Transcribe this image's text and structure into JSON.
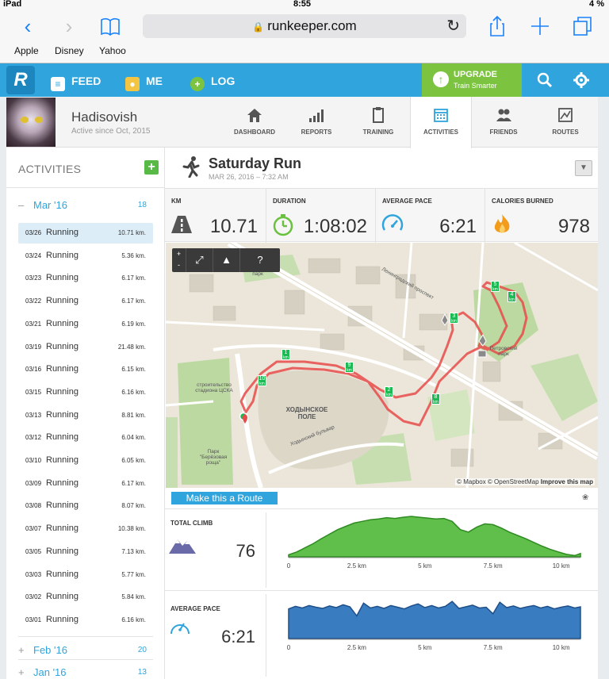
{
  "status_bar": {
    "device": "iPad",
    "time": "8:55",
    "battery": "4 %"
  },
  "browser": {
    "url": "runkeeper.com",
    "bookmarks": [
      "Apple",
      "Disney",
      "Yahoo"
    ]
  },
  "header": {
    "nav": [
      {
        "label": "FEED",
        "icon": "feed-icon"
      },
      {
        "label": "ME",
        "icon": "me-icon"
      },
      {
        "label": "LOG",
        "icon": "log-plus-icon"
      }
    ],
    "upgrade": {
      "title": "UPGRADE",
      "subtitle": "Train Smarter"
    }
  },
  "profile": {
    "name": "Hadisovish",
    "since": "Active since Oct, 2015"
  },
  "tabs": [
    {
      "label": "DASHBOARD",
      "icon": "home-icon",
      "active": false
    },
    {
      "label": "REPORTS",
      "icon": "bar-signal-icon",
      "active": false
    },
    {
      "label": "TRAINING",
      "icon": "clipboard-icon",
      "active": false
    },
    {
      "label": "ACTIVITIES",
      "icon": "calendar-icon",
      "active": true
    },
    {
      "label": "FRIENDS",
      "icon": "friends-icon",
      "active": false
    },
    {
      "label": "ROUTES",
      "icon": "routes-map-icon",
      "active": false
    }
  ],
  "sidebar": {
    "title": "ACTIVITIES",
    "months": [
      {
        "prefix": "–",
        "label": "Mar '16",
        "count": "18"
      },
      {
        "prefix": "+",
        "label": "Feb '16",
        "count": "20"
      },
      {
        "prefix": "+",
        "label": "Jan '16",
        "count": "13"
      }
    ],
    "activities": [
      {
        "date": "03/26",
        "type": "Running",
        "km": "10.71 km."
      },
      {
        "date": "03/24",
        "type": "Running",
        "km": "5.36 km."
      },
      {
        "date": "03/23",
        "type": "Running",
        "km": "6.17 km."
      },
      {
        "date": "03/22",
        "type": "Running",
        "km": "6.17 km."
      },
      {
        "date": "03/21",
        "type": "Running",
        "km": "6.19 km."
      },
      {
        "date": "03/19",
        "type": "Running",
        "km": "21.48 km."
      },
      {
        "date": "03/16",
        "type": "Running",
        "km": "6.15 km."
      },
      {
        "date": "03/15",
        "type": "Running",
        "km": "6.16 km."
      },
      {
        "date": "03/13",
        "type": "Running",
        "km": "8.81 km."
      },
      {
        "date": "03/12",
        "type": "Running",
        "km": "6.04 km."
      },
      {
        "date": "03/10",
        "type": "Running",
        "km": "6.05 km."
      },
      {
        "date": "03/09",
        "type": "Running",
        "km": "6.17 km."
      },
      {
        "date": "03/08",
        "type": "Running",
        "km": "8.07 km."
      },
      {
        "date": "03/07",
        "type": "Running",
        "km": "10.38 km."
      },
      {
        "date": "03/05",
        "type": "Running",
        "km": "7.13 km."
      },
      {
        "date": "03/03",
        "type": "Running",
        "km": "5.77 km."
      },
      {
        "date": "03/02",
        "type": "Running",
        "km": "5.84 km."
      },
      {
        "date": "03/01",
        "type": "Running",
        "km": "6.16 km."
      }
    ],
    "selected_index": 0
  },
  "activity": {
    "title": "Saturday Run",
    "date": "MAR 26, 2016 – 7:32 AM",
    "stats": [
      {
        "label": "KM",
        "value": "10.71",
        "icon": "road-icon"
      },
      {
        "label": "DURATION",
        "value": "1:08:02",
        "icon": "stopwatch-icon"
      },
      {
        "label": "AVERAGE PACE",
        "value": "6:21",
        "icon": "speedometer-icon"
      },
      {
        "label": "CALORIES BURNED",
        "value": "978",
        "icon": "flame-icon"
      }
    ]
  },
  "map": {
    "controls": [
      "+",
      "-",
      "fullscreen-icon",
      "terrain-icon",
      "?"
    ],
    "labels": {
      "field": "ХОДЫНСКОЕ ПОЛЕ",
      "park": "Парк \"Берёзовая роща\"",
      "stadium": "строительство стадиона ЦСКА",
      "petrovsky": "Петровский парк",
      "avenue": "Ленинградский проспект",
      "boulevard": "Ходынский бульвар",
      "park_top": "парк"
    },
    "km_markers": [
      "1",
      "2",
      "3",
      "4",
      "5",
      "8",
      "9",
      "10"
    ],
    "attribution": {
      "mapbox": "© Mapbox",
      "osm": "© OpenStreetMap",
      "improve": "Improve this map"
    }
  },
  "route_button": "Make this a Route",
  "total_climb": {
    "label": "TOTAL CLIMB",
    "value": "76"
  },
  "average_pace": {
    "label": "AVERAGE PACE",
    "value": "6:21"
  },
  "chart_data": [
    {
      "type": "area",
      "name": "elevation",
      "x_ticks": [
        "0",
        "2.5 km",
        "5 km",
        "7.5 km",
        "10 km"
      ],
      "xlim": [
        0,
        10.71
      ],
      "x": [
        0,
        0.3,
        0.6,
        0.9,
        1.2,
        1.5,
        1.8,
        2.1,
        2.4,
        2.7,
        3.0,
        3.3,
        3.6,
        3.9,
        4.2,
        4.5,
        4.8,
        5.1,
        5.4,
        5.7,
        6.0,
        6.3,
        6.6,
        6.9,
        7.2,
        7.5,
        7.8,
        8.1,
        8.4,
        8.7,
        9.0,
        9.3,
        9.6,
        9.9,
        10.2,
        10.5,
        10.71
      ],
      "values": [
        0.05,
        0.12,
        0.22,
        0.32,
        0.44,
        0.55,
        0.66,
        0.74,
        0.82,
        0.86,
        0.9,
        0.92,
        0.95,
        0.93,
        0.96,
        0.98,
        0.96,
        0.94,
        0.92,
        0.93,
        0.86,
        0.66,
        0.6,
        0.72,
        0.8,
        0.78,
        0.7,
        0.6,
        0.52,
        0.44,
        0.35,
        0.26,
        0.18,
        0.12,
        0.06,
        0.03,
        0.08
      ],
      "color": "#5fbf4a"
    },
    {
      "type": "area",
      "name": "pace",
      "x_ticks": [
        "0",
        "2.5 km",
        "5 km",
        "7.5 km",
        "10 km"
      ],
      "xlim": [
        0,
        10.71
      ],
      "x": [
        0,
        0.25,
        0.5,
        0.75,
        1.0,
        1.25,
        1.5,
        1.75,
        2.0,
        2.25,
        2.5,
        2.75,
        3.0,
        3.25,
        3.5,
        3.75,
        4.0,
        4.25,
        4.5,
        4.75,
        5.0,
        5.25,
        5.5,
        5.75,
        6.0,
        6.25,
        6.5,
        6.75,
        7.0,
        7.25,
        7.5,
        7.75,
        8.0,
        8.25,
        8.5,
        8.75,
        9.0,
        9.25,
        9.5,
        9.75,
        10.0,
        10.25,
        10.5,
        10.71
      ],
      "values": [
        0.72,
        0.78,
        0.74,
        0.8,
        0.76,
        0.73,
        0.79,
        0.75,
        0.82,
        0.77,
        0.55,
        0.86,
        0.74,
        0.78,
        0.73,
        0.8,
        0.76,
        0.72,
        0.79,
        0.84,
        0.75,
        0.8,
        0.74,
        0.78,
        0.9,
        0.73,
        0.77,
        0.81,
        0.74,
        0.76,
        0.6,
        0.88,
        0.75,
        0.79,
        0.73,
        0.77,
        0.8,
        0.74,
        0.78,
        0.72,
        0.76,
        0.79,
        0.74,
        0.77
      ],
      "color": "#3a7cc0"
    }
  ]
}
